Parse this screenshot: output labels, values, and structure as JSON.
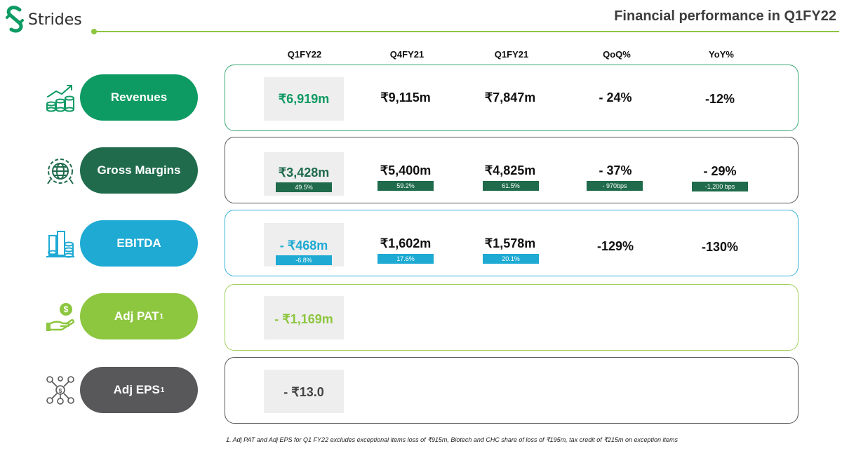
{
  "brand": {
    "name": "Strides"
  },
  "page_title": "Financial performance in Q1FY22",
  "colors": {
    "revenues": "#0e9a63",
    "gross_margins": "#1f6b4c",
    "ebitda": "#1eaad3",
    "adj_pat": "#8dc63f",
    "adj_eps": "#58585a",
    "header_line": "#8dc63f"
  },
  "columns": [
    "Q1FY22",
    "Q4FY21",
    "Q1FY21",
    "QoQ%",
    "YoY%"
  ],
  "rows": [
    {
      "label": "Revenues",
      "sup": "",
      "icon": "coins-growth-icon",
      "values": [
        "₹6,919m",
        "₹9,115m",
        "₹7,847m",
        "- 24%",
        "-12%"
      ],
      "tags": [
        "",
        "",
        "",
        "",
        ""
      ]
    },
    {
      "label": "Gross Margins",
      "sup": "",
      "icon": "globe-gear-icon",
      "values": [
        "₹3,428m",
        "₹5,400m",
        "₹4,825m",
        "- 37%",
        "- 29%"
      ],
      "tags": [
        "49.5%",
        "59.2%",
        "61.5%",
        "- 970bps",
        "-1,200 bps"
      ]
    },
    {
      "label": "EBITDA",
      "sup": "",
      "icon": "coin-stacks-icon",
      "values": [
        "- ₹468m",
        "₹1,602m",
        "₹1,578m",
        "-129%",
        "-130%"
      ],
      "tags": [
        "-6.8%",
        "17.6%",
        "20.1%",
        "",
        ""
      ]
    },
    {
      "label": "Adj PAT",
      "sup": "1",
      "icon": "hand-coin-icon",
      "values": [
        "- ₹1,169m",
        "",
        "",
        "",
        ""
      ],
      "tags": [
        "",
        "",
        "",
        "",
        ""
      ]
    },
    {
      "label": "Adj EPS",
      "sup": "1",
      "icon": "coin-network-icon",
      "values": [
        "- ₹13.0",
        "",
        "",
        "",
        ""
      ],
      "tags": [
        "",
        "",
        "",
        "",
        ""
      ]
    }
  ],
  "footnote": "1. Adj PAT and Adj EPS for Q1 FY22 excludes exceptional items loss of ₹915m, Biotech and CHC share of  loss of ₹195m, tax credit of ₹215m on exception items"
}
